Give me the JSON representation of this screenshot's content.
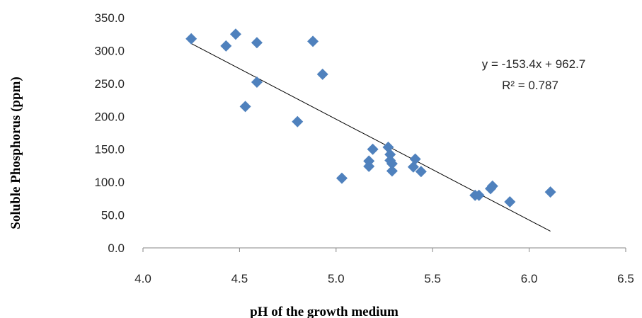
{
  "chart_data": {
    "type": "scatter",
    "xlabel": "pH of the growth medium",
    "ylabel": "Soluble Phosphorus (ppm)",
    "xlim": [
      4.0,
      6.5
    ],
    "ylim": [
      0.0,
      350.0
    ],
    "x_ticks": [
      "4.0",
      "4.5",
      "5.0",
      "5.5",
      "6.0",
      "6.5"
    ],
    "y_ticks": [
      "0.0",
      "50.0",
      "100.0",
      "150.0",
      "200.0",
      "250.0",
      "300.0",
      "350.0"
    ],
    "grid": false,
    "legend": "none",
    "marker_color": "#4f81bd",
    "trendline_color": "#000000",
    "points": [
      [
        4.25,
        318
      ],
      [
        4.43,
        307
      ],
      [
        4.48,
        325
      ],
      [
        4.59,
        312
      ],
      [
        4.59,
        252
      ],
      [
        4.53,
        215
      ],
      [
        4.8,
        192
      ],
      [
        4.88,
        314
      ],
      [
        4.93,
        264
      ],
      [
        5.03,
        106
      ],
      [
        5.17,
        124
      ],
      [
        5.17,
        132
      ],
      [
        5.19,
        150
      ],
      [
        5.27,
        153
      ],
      [
        5.28,
        142
      ],
      [
        5.28,
        133
      ],
      [
        5.29,
        128
      ],
      [
        5.29,
        117
      ],
      [
        5.4,
        123
      ],
      [
        5.41,
        135
      ],
      [
        5.44,
        116
      ],
      [
        5.72,
        80
      ],
      [
        5.74,
        80
      ],
      [
        5.8,
        90
      ],
      [
        5.81,
        94
      ],
      [
        5.9,
        70
      ],
      [
        6.11,
        85
      ]
    ],
    "trendline": {
      "slope": -153.4,
      "intercept": 962.7,
      "x_range": [
        4.25,
        6.11
      ],
      "equation": "y = -153.4x + 962.7",
      "r_squared": "R² = 0.787"
    }
  }
}
